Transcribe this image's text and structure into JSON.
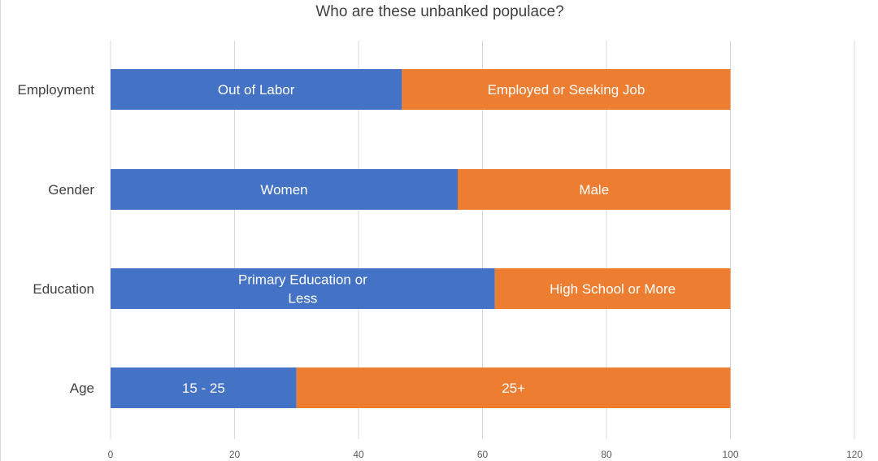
{
  "chart_data": {
    "type": "bar",
    "orientation": "horizontal",
    "stacked": true,
    "title": "Who are these unbanked populace?",
    "categories": [
      "Employment",
      "Gender",
      "Education",
      "Age"
    ],
    "series": [
      {
        "color": "#4472c4",
        "values": [
          47,
          56,
          62,
          30
        ],
        "segment_labels": [
          [
            "Out of Labor"
          ],
          [
            "Women"
          ],
          [
            "Primary Education or",
            "Less"
          ],
          [
            "15 - 25"
          ]
        ]
      },
      {
        "color": "#ed7d31",
        "values": [
          53,
          44,
          38,
          70
        ],
        "segment_labels": [
          [
            "Employed or Seeking Job"
          ],
          [
            "Male"
          ],
          [
            "High School or More"
          ],
          [
            "25+"
          ]
        ]
      }
    ],
    "xlim": [
      0,
      120
    ],
    "xticks": [
      0,
      20,
      40,
      60,
      80,
      100,
      120
    ],
    "grid": "vertical",
    "legend": "none",
    "xlabel": "",
    "ylabel": ""
  }
}
